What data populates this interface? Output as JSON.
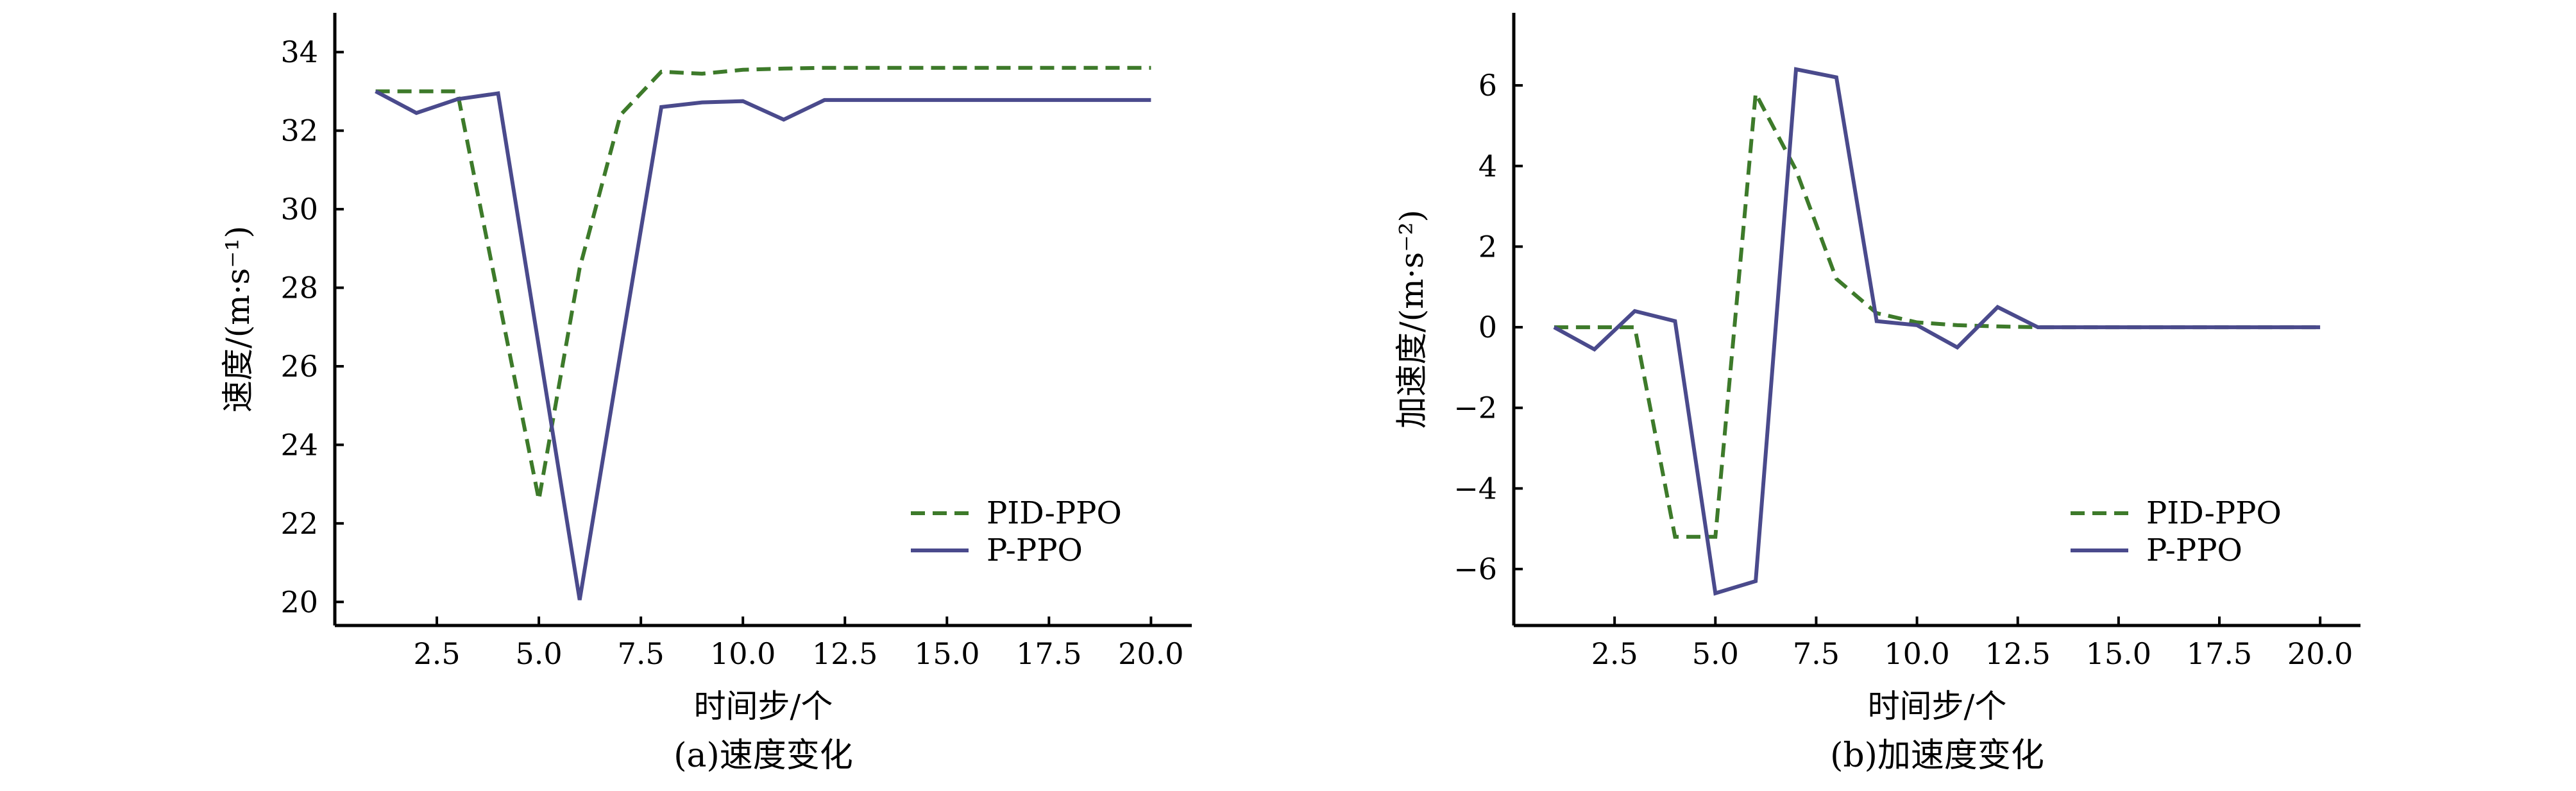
{
  "chart_data": [
    {
      "id": "a",
      "type": "line",
      "caption": "(a)速度变化",
      "xlabel": "时间步/个",
      "ylabel": "速度/(m·s⁻¹)",
      "xlim": [
        0.0,
        21.0
      ],
      "ylim": [
        19.4,
        35.0
      ],
      "xticks": [
        2.5,
        5.0,
        7.5,
        10.0,
        12.5,
        15.0,
        17.5,
        20.0
      ],
      "xtick_labels": [
        "2.5",
        "5.0",
        "7.5",
        "10.0",
        "12.5",
        "15.0",
        "17.5",
        "20.0"
      ],
      "yticks": [
        20,
        22,
        24,
        26,
        28,
        30,
        32,
        34
      ],
      "ytick_labels": [
        "20",
        "22",
        "24",
        "26",
        "28",
        "30",
        "32",
        "34"
      ],
      "grid": false,
      "legend_position": "lower-right",
      "x": [
        1,
        2,
        3,
        4,
        5,
        6,
        7,
        8,
        9,
        10,
        11,
        12,
        13,
        14,
        15,
        16,
        17,
        18,
        19,
        20
      ],
      "series": [
        {
          "name": "PID-PPO",
          "color": "#3d7a2a",
          "dash": "dashed",
          "values": [
            33.0,
            33.0,
            33.0,
            27.8,
            22.6,
            28.5,
            32.4,
            33.5,
            33.45,
            33.55,
            33.58,
            33.6,
            33.6,
            33.6,
            33.6,
            33.6,
            33.6,
            33.6,
            33.6,
            33.6
          ]
        },
        {
          "name": "P-PPO",
          "color": "#4a4a8c",
          "dash": "solid",
          "values": [
            33.0,
            32.45,
            32.8,
            32.95,
            26.5,
            20.05,
            26.35,
            32.6,
            32.72,
            32.75,
            32.28,
            32.78,
            32.78,
            32.78,
            32.78,
            32.78,
            32.78,
            32.78,
            32.78,
            32.78
          ]
        }
      ]
    },
    {
      "id": "b",
      "type": "line",
      "caption": "(b)加速度变化",
      "xlabel": "时间步/个",
      "ylabel": "加速度/(m·s⁻²)",
      "xlim": [
        0.0,
        21.0
      ],
      "ylim": [
        -7.4,
        7.8
      ],
      "xticks": [
        2.5,
        5.0,
        7.5,
        10.0,
        12.5,
        15.0,
        17.5,
        20.0
      ],
      "xtick_labels": [
        "2.5",
        "5.0",
        "7.5",
        "10.0",
        "12.5",
        "15.0",
        "17.5",
        "20.0"
      ],
      "yticks": [
        -6,
        -4,
        -2,
        0,
        2,
        4,
        6
      ],
      "ytick_labels": [
        "−6",
        "−4",
        "−2",
        "0",
        "2",
        "4",
        "6"
      ],
      "grid": false,
      "legend_position": "lower-right",
      "x": [
        1,
        2,
        3,
        4,
        5,
        6,
        7,
        8,
        9,
        10,
        11,
        12,
        13,
        14,
        15,
        16,
        17,
        18,
        19,
        20
      ],
      "series": [
        {
          "name": "PID-PPO",
          "color": "#3d7a2a",
          "dash": "dashed",
          "values": [
            0.0,
            0.0,
            0.0,
            -5.2,
            -5.2,
            5.8,
            3.9,
            1.2,
            0.35,
            0.12,
            0.05,
            0.02,
            0.0,
            0.0,
            0.0,
            0.0,
            0.0,
            0.0,
            0.0,
            0.0
          ]
        },
        {
          "name": "P-PPO",
          "color": "#4a4a8c",
          "dash": "solid",
          "values": [
            0.0,
            -0.55,
            0.4,
            0.15,
            -6.6,
            -6.3,
            6.4,
            6.2,
            0.15,
            0.05,
            -0.5,
            0.5,
            0.0,
            0.0,
            0.0,
            0.0,
            0.0,
            0.0,
            0.0,
            0.0
          ]
        }
      ]
    }
  ]
}
